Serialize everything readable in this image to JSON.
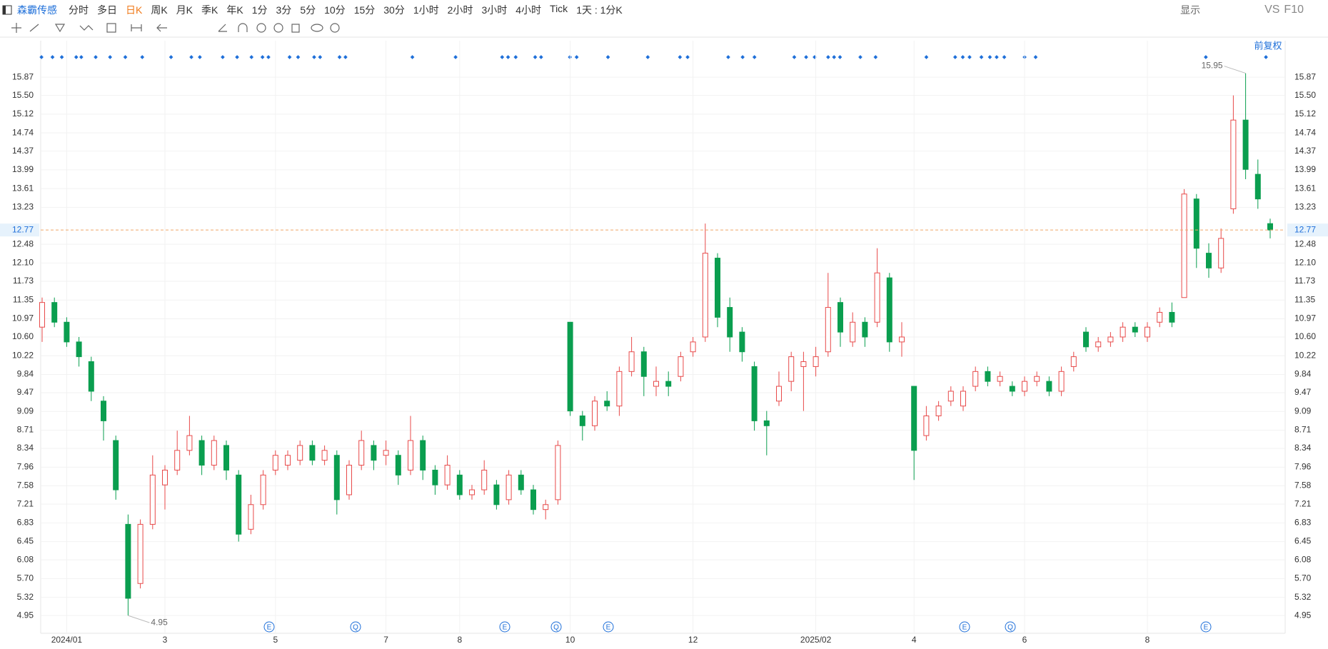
{
  "toolbar": {
    "stock": "森霸传感",
    "periods": [
      "分时",
      "多日",
      "日K",
      "周K",
      "月K",
      "季K",
      "年K",
      "1分",
      "3分",
      "5分",
      "10分",
      "15分",
      "30分",
      "1小时",
      "2小时",
      "3小时",
      "4小时",
      "Tick",
      "1天 : 1分K"
    ],
    "active": 2,
    "right": [
      "显示",
      "VS",
      "F10"
    ]
  },
  "adjust": "前复权",
  "event_markers": [
    "E",
    "Q",
    "E",
    "Q",
    "E",
    "E",
    "Q",
    "E"
  ],
  "chart_data": {
    "type": "candlestick",
    "categories": [
      null,
      null,
      "2024/01",
      null,
      null,
      null,
      null,
      null,
      null,
      null,
      "3",
      null,
      null,
      null,
      null,
      null,
      null,
      null,
      null,
      "5",
      null,
      null,
      null,
      null,
      null,
      null,
      null,
      null,
      "7",
      null,
      null,
      null,
      null,
      null,
      "8",
      null,
      null,
      null,
      null,
      null,
      null,
      null,
      null,
      "10",
      null,
      null,
      null,
      null,
      null,
      null,
      null,
      null,
      null,
      "12",
      null,
      null,
      null,
      null,
      null,
      null,
      null,
      null,
      null,
      "2025/02",
      null,
      null,
      null,
      null,
      null,
      null,
      null,
      "4",
      null,
      null,
      null,
      null,
      null,
      null,
      null,
      null,
      "6",
      null,
      null,
      null,
      null,
      null,
      null,
      null,
      null,
      null,
      "8",
      null,
      null,
      null,
      null,
      null,
      null,
      null,
      null,
      null,
      null
    ],
    "open": [
      10.8,
      11.3,
      10.9,
      10.5,
      10.1,
      9.3,
      8.5,
      6.8,
      5.6,
      6.8,
      7.6,
      7.9,
      8.3,
      8.5,
      8.0,
      8.4,
      7.8,
      6.7,
      7.2,
      7.9,
      8.0,
      8.1,
      8.4,
      8.1,
      8.2,
      7.4,
      8.0,
      8.4,
      8.2,
      8.2,
      7.9,
      8.5,
      7.9,
      7.6,
      7.8,
      7.4,
      7.5,
      7.6,
      7.3,
      7.8,
      7.5,
      7.1,
      7.3,
      10.9,
      9.0,
      8.8,
      9.3,
      9.2,
      9.9,
      10.3,
      9.6,
      9.7,
      9.8,
      10.3,
      10.6,
      12.2,
      11.2,
      10.7,
      10.0,
      8.9,
      9.3,
      9.7,
      10.0,
      10.0,
      10.3,
      11.3,
      10.5,
      10.9,
      10.9,
      11.8,
      10.5,
      9.6,
      8.6,
      9.0,
      9.3,
      9.2,
      9.6,
      9.9,
      9.7,
      9.6,
      9.5,
      9.7,
      9.7,
      9.5,
      10.0,
      10.7,
      10.4,
      10.5,
      10.6,
      10.8,
      10.6,
      10.9,
      11.1,
      11.4,
      13.4,
      12.3,
      12.0,
      13.2,
      15.0,
      13.9,
      12.9
    ],
    "high": [
      11.4,
      11.4,
      11.0,
      10.6,
      10.2,
      9.4,
      8.6,
      7.0,
      6.9,
      8.2,
      8.0,
      8.7,
      9.0,
      8.6,
      8.6,
      8.5,
      7.9,
      7.4,
      7.9,
      8.3,
      8.3,
      8.5,
      8.5,
      8.4,
      8.3,
      8.1,
      8.7,
      8.5,
      8.5,
      8.3,
      9.0,
      8.6,
      8.0,
      8.2,
      7.9,
      7.6,
      8.1,
      7.7,
      7.9,
      7.9,
      7.6,
      7.3,
      8.5,
      10.9,
      9.1,
      9.4,
      9.5,
      10.0,
      10.6,
      10.4,
      10.0,
      9.9,
      10.3,
      10.6,
      12.9,
      12.3,
      11.4,
      10.8,
      10.1,
      9.1,
      9.9,
      10.3,
      10.3,
      10.4,
      11.9,
      11.4,
      11.1,
      11.0,
      12.4,
      11.9,
      10.9,
      9.6,
      9.2,
      9.3,
      9.6,
      9.6,
      10.0,
      10.0,
      9.9,
      9.7,
      9.8,
      9.9,
      9.8,
      10.0,
      10.3,
      10.8,
      10.6,
      10.7,
      10.9,
      10.9,
      10.9,
      11.2,
      11.3,
      13.6,
      13.5,
      12.5,
      12.8,
      15.5,
      15.95,
      14.2,
      13.0
    ],
    "low": [
      10.5,
      10.8,
      10.4,
      10.0,
      9.3,
      8.5,
      7.3,
      4.95,
      5.5,
      6.7,
      7.1,
      7.8,
      8.2,
      7.8,
      7.9,
      7.7,
      6.45,
      6.6,
      7.1,
      7.8,
      7.9,
      8.0,
      8.0,
      8.0,
      7.0,
      7.3,
      7.9,
      7.9,
      8.0,
      7.6,
      7.8,
      7.7,
      7.4,
      7.5,
      7.3,
      7.3,
      7.4,
      7.1,
      7.2,
      7.4,
      7.0,
      6.9,
      7.2,
      9.0,
      8.5,
      8.7,
      9.1,
      9.0,
      9.8,
      9.4,
      9.4,
      9.4,
      9.7,
      10.2,
      10.5,
      10.8,
      10.3,
      10.1,
      8.7,
      8.2,
      9.2,
      9.5,
      9.1,
      9.8,
      10.2,
      10.4,
      10.4,
      10.4,
      10.8,
      10.3,
      10.2,
      7.7,
      8.5,
      8.9,
      9.2,
      9.1,
      9.5,
      9.6,
      9.6,
      9.4,
      9.4,
      9.6,
      9.4,
      9.4,
      9.9,
      10.3,
      10.3,
      10.4,
      10.5,
      10.6,
      10.5,
      10.8,
      10.8,
      11.4,
      12.0,
      11.8,
      11.9,
      13.1,
      13.8,
      13.2,
      12.6
    ],
    "close": [
      11.3,
      10.9,
      10.5,
      10.2,
      9.5,
      8.9,
      7.5,
      5.3,
      6.8,
      7.8,
      7.9,
      8.3,
      8.6,
      8.0,
      8.5,
      7.9,
      6.6,
      7.2,
      7.8,
      8.2,
      8.2,
      8.4,
      8.1,
      8.3,
      7.3,
      8.0,
      8.5,
      8.1,
      8.3,
      7.8,
      8.5,
      7.9,
      7.6,
      8.0,
      7.4,
      7.5,
      7.9,
      7.2,
      7.8,
      7.5,
      7.1,
      7.2,
      8.4,
      9.1,
      8.8,
      9.3,
      9.2,
      9.9,
      10.3,
      9.8,
      9.7,
      9.6,
      10.2,
      10.5,
      12.3,
      11.0,
      10.6,
      10.3,
      8.9,
      8.8,
      9.6,
      10.2,
      10.1,
      10.2,
      11.2,
      10.7,
      10.9,
      10.6,
      11.9,
      10.5,
      10.6,
      8.3,
      9.0,
      9.2,
      9.5,
      9.5,
      9.9,
      9.7,
      9.8,
      9.5,
      9.7,
      9.8,
      9.5,
      9.9,
      10.2,
      10.4,
      10.5,
      10.6,
      10.8,
      10.7,
      10.8,
      11.1,
      10.9,
      13.5,
      12.4,
      12.0,
      12.6,
      15.0,
      14.0,
      13.4,
      12.77
    ],
    "up_color": "#e84a4a",
    "down_color": "#0a9e4f",
    "ylim": [
      4.59,
      16.61
    ],
    "yticks": [
      4.95,
      5.32,
      {
        "value": 5.7,
        "label": "5.70"
      },
      6.08,
      6.45,
      6.83,
      7.21,
      7.58,
      7.96,
      8.34,
      8.71,
      9.09,
      9.47,
      9.84,
      10.22,
      {
        "value": 10.6,
        "label": "10.60"
      },
      10.97,
      11.35,
      11.73,
      {
        "value": 12.1,
        "label": "12.10"
      },
      12.48,
      13.23,
      13.61,
      13.99,
      14.37,
      14.74,
      15.12,
      {
        "value": 15.5,
        "label": "15.50"
      },
      15.87
    ],
    "grid": true
  }
}
